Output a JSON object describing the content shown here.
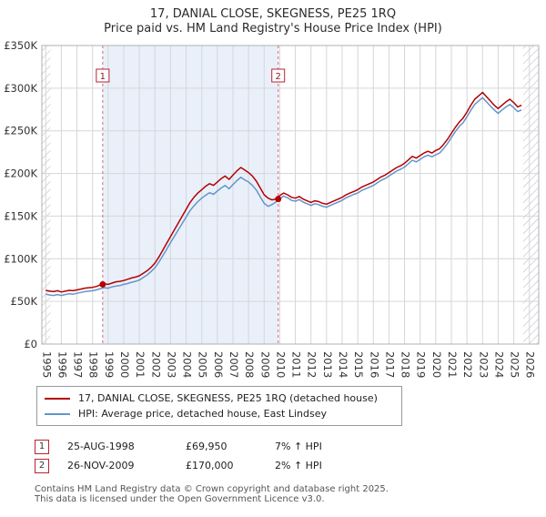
{
  "chart_data": {
    "type": "line",
    "title": "17, DANIAL CLOSE, SKEGNESS, PE25 1RQ",
    "subtitle": "Price paid vs. HM Land Registry's House Price Index (HPI)",
    "xlabel": "",
    "ylabel": "",
    "grid": true,
    "legend_position": "bottom",
    "xlim": [
      1994.75,
      2026.6
    ],
    "ylim": [
      0,
      350000
    ],
    "yticks": [
      0,
      50000,
      100000,
      150000,
      200000,
      250000,
      300000,
      350000
    ],
    "ytick_labels": [
      "£0",
      "£50K",
      "£100K",
      "£150K",
      "£200K",
      "£250K",
      "£300K",
      "£350K"
    ],
    "xticks": [
      1995,
      1996,
      1997,
      1998,
      1999,
      2000,
      2001,
      2002,
      2003,
      2004,
      2005,
      2006,
      2007,
      2008,
      2009,
      2010,
      2011,
      2012,
      2013,
      2014,
      2015,
      2016,
      2017,
      2018,
      2019,
      2020,
      2021,
      2022,
      2023,
      2024,
      2025,
      2026
    ],
    "x_start": 1995,
    "x_step": 0.25,
    "shaded_region": {
      "from": 1998.65,
      "to": 2009.9,
      "color": "#e9f0fa"
    },
    "hatch_regions": [
      [
        1994.75,
        1995.3
      ],
      [
        2025.6,
        2026.6
      ]
    ],
    "dashed_line_color": "#d4687a",
    "grid_color": "#d6d6da",
    "border_color": "#b0b0b6",
    "series": [
      {
        "name": "price-paid",
        "label": "17, DANIAL CLOSE, SKEGNESS, PE25 1RQ (detached house)",
        "color": "#b30000",
        "values": [
          63000,
          62000,
          61500,
          62500,
          61000,
          62000,
          63000,
          62500,
          63500,
          64500,
          65500,
          66000,
          66500,
          67500,
          69500,
          70500,
          70000,
          71500,
          73000,
          73500,
          74500,
          76000,
          77500,
          78500,
          80000,
          83000,
          86000,
          90000,
          95000,
          102000,
          110000,
          118000,
          126000,
          134000,
          142000,
          150000,
          158000,
          166000,
          172000,
          177000,
          181000,
          185000,
          188000,
          186000,
          190000,
          194000,
          197000,
          193000,
          198000,
          203000,
          207000,
          204000,
          201000,
          197000,
          191000,
          183000,
          175000,
          171000,
          169000,
          170000,
          174000,
          177000,
          175000,
          172000,
          171000,
          173000,
          170000,
          168000,
          166000,
          168000,
          167000,
          165000,
          164000,
          166000,
          168000,
          170000,
          172000,
          175000,
          177000,
          179000,
          181000,
          184000,
          186000,
          188000,
          190000,
          193000,
          196000,
          198000,
          201000,
          204000,
          207000,
          209000,
          212000,
          216000,
          220000,
          218000,
          221000,
          224000,
          226000,
          224000,
          227000,
          229000,
          234000,
          240000,
          247000,
          254000,
          260000,
          265000,
          272000,
          280000,
          287000,
          291000,
          295000,
          290000,
          285000,
          280000,
          276000,
          280000,
          284000,
          287000,
          283000,
          278000,
          280000
        ]
      },
      {
        "name": "hpi",
        "label": "HPI: Average price, detached house, East Lindsey",
        "color": "#6694c9",
        "values": [
          58500,
          57500,
          57000,
          58000,
          57000,
          58000,
          59000,
          58500,
          59500,
          60500,
          61500,
          62000,
          62500,
          63500,
          65000,
          66000,
          65500,
          67000,
          68000,
          68500,
          70000,
          71000,
          72500,
          73500,
          75000,
          78000,
          81000,
          85000,
          89500,
          96000,
          103500,
          111000,
          119000,
          126500,
          134000,
          141500,
          149000,
          156500,
          162000,
          167000,
          171000,
          174500,
          177500,
          175500,
          179500,
          183000,
          186000,
          182000,
          187000,
          191500,
          195500,
          192500,
          190000,
          186000,
          180500,
          172500,
          165000,
          161500,
          163500,
          166500,
          170500,
          173500,
          171500,
          168500,
          167500,
          169500,
          166500,
          164500,
          162500,
          164500,
          163500,
          161500,
          160500,
          162500,
          164500,
          166500,
          168500,
          171500,
          173500,
          175500,
          177000,
          180000,
          182000,
          184000,
          186000,
          189000,
          192000,
          194000,
          197000,
          200000,
          203000,
          205000,
          207500,
          211500,
          215500,
          213500,
          216500,
          219500,
          221500,
          219500,
          222000,
          224000,
          229000,
          235000,
          242000,
          249000,
          255000,
          259500,
          266500,
          274000,
          281000,
          285000,
          289000,
          284000,
          279000,
          274500,
          270500,
          274500,
          278000,
          281000,
          277000,
          272500,
          274500
        ]
      }
    ],
    "sale_markers": [
      {
        "num": "1",
        "x": 1998.65,
        "y": 69950
      },
      {
        "num": "2",
        "x": 2009.9,
        "y": 170000
      }
    ]
  },
  "annotations": [
    {
      "num": "1",
      "date": "25-AUG-1998",
      "price": "£69,950",
      "hpi": "7% ↑ HPI"
    },
    {
      "num": "2",
      "date": "26-NOV-2009",
      "price": "£170,000",
      "hpi": "2% ↑ HPI"
    }
  ],
  "footer": {
    "line1": "Contains HM Land Registry data © Crown copyright and database right 2025.",
    "line2": "This data is licensed under the Open Government Licence v3.0."
  }
}
